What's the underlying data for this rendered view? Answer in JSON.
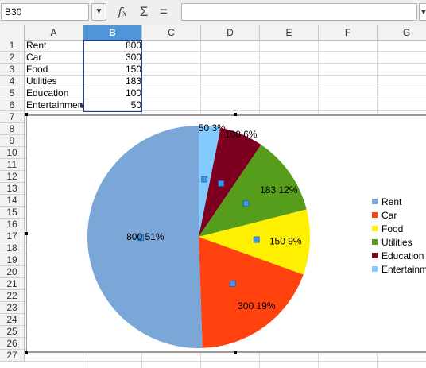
{
  "formula_bar": {
    "name_box": "B30",
    "formula": ""
  },
  "columns": [
    {
      "label": "A",
      "selected": false
    },
    {
      "label": "B",
      "selected": true
    },
    {
      "label": "C",
      "selected": false
    },
    {
      "label": "D",
      "selected": false
    },
    {
      "label": "E",
      "selected": false
    },
    {
      "label": "F",
      "selected": false
    },
    {
      "label": "G",
      "selected": false
    }
  ],
  "rows": [
    "1",
    "2",
    "3",
    "4",
    "5",
    "6",
    "7",
    "8",
    "9",
    "10",
    "11",
    "12",
    "13",
    "14",
    "15",
    "16",
    "17",
    "18",
    "19",
    "20",
    "21",
    "22",
    "23",
    "24",
    "25",
    "26",
    "27"
  ],
  "cells": [
    {
      "a": "Rent",
      "b": "800"
    },
    {
      "a": "Car",
      "b": "300"
    },
    {
      "a": "Food",
      "b": "150"
    },
    {
      "a": "Utilities",
      "b": "183"
    },
    {
      "a": "Education",
      "b": "100"
    },
    {
      "a": "Entertainment",
      "b": "50"
    }
  ],
  "colors": {
    "selection_border": "#1a3cb0",
    "column_selected_bg": "#4e95d9"
  },
  "chart_data": {
    "type": "pie",
    "categories": [
      "Rent",
      "Car",
      "Food",
      "Utilities",
      "Education",
      "Entertainment"
    ],
    "values": [
      800,
      300,
      150,
      183,
      100,
      50
    ],
    "labels": [
      "800 51%",
      "300 19%",
      "150 9%",
      "183 12%",
      "100 6%",
      "50 3%"
    ],
    "colors": [
      "#7ba6d8",
      "#ff420e",
      "#ffef00",
      "#579d1c",
      "#7e0021",
      "#83caff"
    ],
    "legend": "right"
  }
}
